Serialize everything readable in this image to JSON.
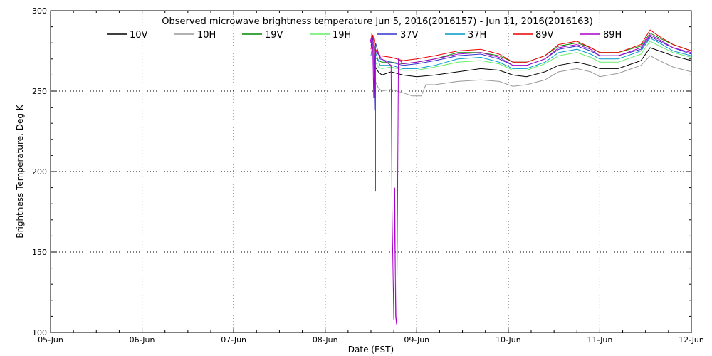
{
  "chart_data": {
    "type": "line",
    "title": "Observed microwave brightness temperature Jun  5, 2016(2016157) - Jun 11, 2016(2016163)",
    "xlabel": "Date (EST)",
    "ylabel": "Brightness Temperature, Deg K",
    "x_ticks": [
      "05-Jun",
      "06-Jun",
      "07-Jun",
      "08-Jun",
      "09-Jun",
      "10-Jun",
      "11-Jun",
      "12-Jun"
    ],
    "y_ticks": [
      "100",
      "150",
      "200",
      "250",
      "300"
    ],
    "xlim_days": [
      0,
      7
    ],
    "ylim": [
      100,
      300
    ],
    "grid": true,
    "legend_position": "top",
    "series": [
      {
        "name": "10V",
        "color": "#000000",
        "points": [
          [
            3.55,
            265
          ],
          [
            3.58,
            262
          ],
          [
            3.62,
            260
          ],
          [
            3.72,
            262
          ],
          [
            3.85,
            260
          ],
          [
            4.0,
            259
          ],
          [
            4.2,
            260
          ],
          [
            4.45,
            262
          ],
          [
            4.7,
            264
          ],
          [
            4.9,
            263
          ],
          [
            5.05,
            260
          ],
          [
            5.2,
            259
          ],
          [
            5.4,
            262
          ],
          [
            5.55,
            266
          ],
          [
            5.75,
            268
          ],
          [
            5.9,
            266
          ],
          [
            6.0,
            264
          ],
          [
            6.2,
            264
          ],
          [
            6.45,
            269
          ],
          [
            6.55,
            277
          ],
          [
            6.65,
            275
          ],
          [
            6.8,
            272
          ],
          [
            7.0,
            269
          ]
        ]
      },
      {
        "name": "10H",
        "color": "#999999",
        "points": [
          [
            3.55,
            256
          ],
          [
            3.58,
            252
          ],
          [
            3.62,
            250
          ],
          [
            3.72,
            251
          ],
          [
            3.85,
            249
          ],
          [
            3.95,
            247
          ],
          [
            4.05,
            247
          ],
          [
            4.1,
            254
          ],
          [
            4.2,
            254
          ],
          [
            4.45,
            256
          ],
          [
            4.7,
            257
          ],
          [
            4.9,
            256
          ],
          [
            5.05,
            253
          ],
          [
            5.2,
            254
          ],
          [
            5.4,
            257
          ],
          [
            5.55,
            262
          ],
          [
            5.75,
            264
          ],
          [
            5.9,
            262
          ],
          [
            6.0,
            259
          ],
          [
            6.2,
            261
          ],
          [
            6.45,
            266
          ],
          [
            6.55,
            272
          ],
          [
            6.65,
            269
          ],
          [
            6.8,
            265
          ],
          [
            7.0,
            262
          ]
        ]
      },
      {
        "name": "19V",
        "color": "#008800",
        "points": [
          [
            3.55,
            271
          ],
          [
            3.58,
            269
          ],
          [
            3.62,
            268
          ],
          [
            3.72,
            268
          ],
          [
            3.85,
            267
          ],
          [
            4.0,
            268
          ],
          [
            4.2,
            270
          ],
          [
            4.45,
            274
          ],
          [
            4.7,
            274
          ],
          [
            4.9,
            272
          ],
          [
            5.05,
            268
          ],
          [
            5.2,
            268
          ],
          [
            5.4,
            272
          ],
          [
            5.55,
            278
          ],
          [
            5.75,
            280
          ],
          [
            5.9,
            277
          ],
          [
            6.0,
            274
          ],
          [
            6.2,
            274
          ],
          [
            6.45,
            278
          ],
          [
            6.55,
            286
          ],
          [
            6.65,
            283
          ],
          [
            6.8,
            279
          ],
          [
            7.0,
            275
          ]
        ]
      },
      {
        "name": "19H",
        "color": "#66ee66",
        "points": [
          [
            3.55,
            268
          ],
          [
            3.58,
            265
          ],
          [
            3.62,
            264
          ],
          [
            3.72,
            265
          ],
          [
            3.85,
            263
          ],
          [
            4.0,
            263
          ],
          [
            4.2,
            265
          ],
          [
            4.45,
            268
          ],
          [
            4.7,
            269
          ],
          [
            4.9,
            267
          ],
          [
            5.05,
            263
          ],
          [
            5.2,
            263
          ],
          [
            5.4,
            267
          ],
          [
            5.55,
            272
          ],
          [
            5.75,
            274
          ],
          [
            5.9,
            271
          ],
          [
            6.0,
            268
          ],
          [
            6.2,
            268
          ],
          [
            6.45,
            273
          ],
          [
            6.55,
            281
          ],
          [
            6.65,
            278
          ],
          [
            6.8,
            274
          ],
          [
            7.0,
            271
          ]
        ]
      },
      {
        "name": "37V",
        "color": "#3333cc",
        "points": [
          [
            3.5,
            278
          ],
          [
            3.52,
            284
          ],
          [
            3.53,
            276
          ],
          [
            3.54,
            238
          ],
          [
            3.55,
            280
          ],
          [
            3.6,
            270
          ],
          [
            3.72,
            268
          ],
          [
            3.85,
            266
          ],
          [
            4.0,
            267
          ],
          [
            4.2,
            269
          ],
          [
            4.45,
            272
          ],
          [
            4.7,
            273
          ],
          [
            4.9,
            270
          ],
          [
            5.05,
            266
          ],
          [
            5.2,
            266
          ],
          [
            5.4,
            270
          ],
          [
            5.55,
            276
          ],
          [
            5.75,
            278
          ],
          [
            5.9,
            275
          ],
          [
            6.0,
            272
          ],
          [
            6.2,
            272
          ],
          [
            6.45,
            276
          ],
          [
            6.55,
            284
          ],
          [
            6.65,
            281
          ],
          [
            6.8,
            277
          ],
          [
            7.0,
            273
          ]
        ]
      },
      {
        "name": "37H",
        "color": "#0099cc",
        "points": [
          [
            3.5,
            272
          ],
          [
            3.52,
            280
          ],
          [
            3.55,
            274
          ],
          [
            3.6,
            266
          ],
          [
            3.72,
            266
          ],
          [
            3.85,
            264
          ],
          [
            4.0,
            264
          ],
          [
            4.2,
            266
          ],
          [
            4.45,
            270
          ],
          [
            4.7,
            271
          ],
          [
            4.9,
            268
          ],
          [
            5.05,
            264
          ],
          [
            5.2,
            264
          ],
          [
            5.4,
            268
          ],
          [
            5.55,
            274
          ],
          [
            5.75,
            276
          ],
          [
            5.9,
            273
          ],
          [
            6.0,
            270
          ],
          [
            6.2,
            270
          ],
          [
            6.45,
            275
          ],
          [
            6.55,
            283
          ],
          [
            6.65,
            280
          ],
          [
            6.8,
            275
          ],
          [
            7.0,
            272
          ]
        ]
      },
      {
        "name": "89V",
        "color": "#ee0000",
        "points": [
          [
            3.5,
            276
          ],
          [
            3.52,
            285
          ],
          [
            3.54,
            280
          ],
          [
            3.55,
            188
          ],
          [
            3.55,
            276
          ],
          [
            3.6,
            272
          ],
          [
            3.72,
            271
          ],
          [
            3.85,
            269
          ],
          [
            4.0,
            270
          ],
          [
            4.2,
            272
          ],
          [
            4.45,
            275
          ],
          [
            4.7,
            276
          ],
          [
            4.9,
            273
          ],
          [
            5.05,
            268
          ],
          [
            5.2,
            268
          ],
          [
            5.4,
            272
          ],
          [
            5.55,
            279
          ],
          [
            5.75,
            281
          ],
          [
            5.9,
            277
          ],
          [
            6.0,
            274
          ],
          [
            6.2,
            274
          ],
          [
            6.45,
            279
          ],
          [
            6.55,
            288
          ],
          [
            6.65,
            284
          ],
          [
            6.8,
            279
          ],
          [
            7.0,
            275
          ]
        ]
      },
      {
        "name": "89H",
        "color": "#aa00cc",
        "points": [
          [
            3.49,
            283
          ],
          [
            3.5,
            280
          ],
          [
            3.51,
            286
          ],
          [
            3.52,
            276
          ],
          [
            3.53,
            246
          ],
          [
            3.54,
            272
          ],
          [
            3.55,
            275
          ],
          [
            3.62,
            270
          ],
          [
            3.72,
            266
          ],
          [
            3.73,
            176
          ],
          [
            3.75,
            108
          ],
          [
            3.76,
            190
          ],
          [
            3.77,
            110
          ],
          [
            3.78,
            105
          ],
          [
            3.79,
            178
          ],
          [
            3.8,
            270
          ],
          [
            3.85,
            267
          ],
          [
            4.0,
            268
          ],
          [
            4.2,
            270
          ],
          [
            4.45,
            273
          ],
          [
            4.7,
            274
          ],
          [
            4.9,
            271
          ],
          [
            5.05,
            266
          ],
          [
            5.2,
            266
          ],
          [
            5.4,
            270
          ],
          [
            5.55,
            277
          ],
          [
            5.75,
            279
          ],
          [
            5.9,
            276
          ],
          [
            6.0,
            272
          ],
          [
            6.2,
            272
          ],
          [
            6.45,
            277
          ],
          [
            6.55,
            285
          ],
          [
            6.65,
            282
          ],
          [
            6.8,
            277
          ],
          [
            7.0,
            274
          ]
        ]
      }
    ]
  }
}
